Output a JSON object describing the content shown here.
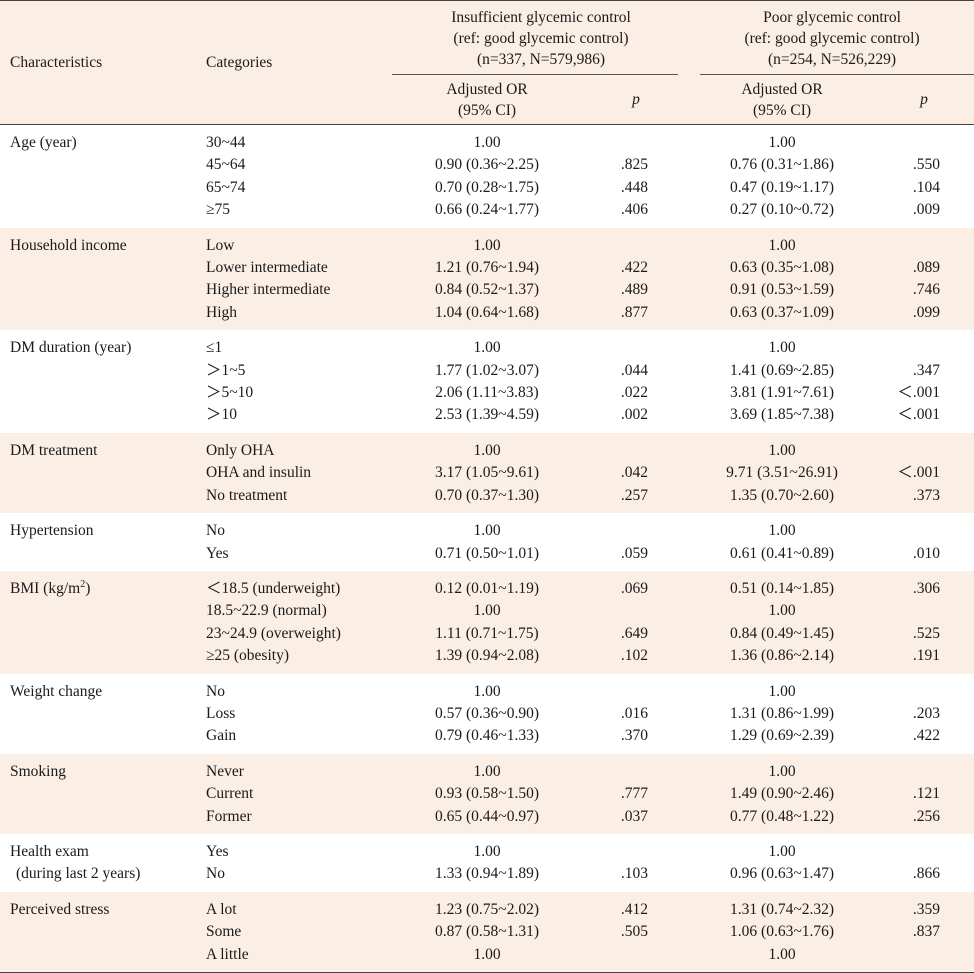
{
  "header": {
    "characteristics": "Characteristics",
    "categories": "Categories",
    "group1": {
      "line1": "Insufficient glycemic control",
      "line2": "(ref: good glycemic control)",
      "line3": "(n=337, N=579,986)"
    },
    "group2": {
      "line1": "Poor glycemic control",
      "line2": "(ref: good glycemic control)",
      "line3": "(n=254, N=526,229)"
    },
    "or_line1": "Adjusted OR",
    "or_line2": "(95% CI)",
    "p": "p"
  },
  "groups": [
    {
      "label": "Age (year)",
      "label2": "",
      "rows": [
        {
          "cat": "30~44",
          "or1": "1.00",
          "p1": "",
          "or2": "1.00",
          "p2": ""
        },
        {
          "cat": "45~64",
          "or1": "0.90 (0.36~2.25)",
          "p1": ".825",
          "or2": "0.76 (0.31~1.86)",
          "p2": ".550"
        },
        {
          "cat": "65~74",
          "or1": "0.70 (0.28~1.75)",
          "p1": ".448",
          "or2": "0.47 (0.19~1.17)",
          "p2": ".104"
        },
        {
          "cat": "≥75",
          "or1": "0.66 (0.24~1.77)",
          "p1": ".406",
          "or2": "0.27 (0.10~0.72)",
          "p2": ".009"
        }
      ]
    },
    {
      "label": "Household income",
      "label2": "",
      "rows": [
        {
          "cat": "Low",
          "or1": "1.00",
          "p1": "",
          "or2": "1.00",
          "p2": ""
        },
        {
          "cat": "Lower intermediate",
          "or1": "1.21 (0.76~1.94)",
          "p1": ".422",
          "or2": "0.63 (0.35~1.08)",
          "p2": ".089"
        },
        {
          "cat": "Higher intermediate",
          "or1": "0.84 (0.52~1.37)",
          "p1": ".489",
          "or2": "0.91 (0.53~1.59)",
          "p2": ".746"
        },
        {
          "cat": "High",
          "or1": "1.04 (0.64~1.68)",
          "p1": ".877",
          "or2": "0.63 (0.37~1.09)",
          "p2": ".099"
        }
      ]
    },
    {
      "label": "DM duration (year)",
      "label2": "",
      "rows": [
        {
          "cat": "≤1",
          "or1": "1.00",
          "p1": "",
          "or2": "1.00",
          "p2": ""
        },
        {
          "cat": "＞1~5",
          "or1": "1.77 (1.02~3.07)",
          "p1": ".044",
          "or2": "1.41 (0.69~2.85)",
          "p2": ".347"
        },
        {
          "cat": "＞5~10",
          "or1": "2.06 (1.11~3.83)",
          "p1": ".022",
          "or2": "3.81 (1.91~7.61)",
          "p2": "＜.001"
        },
        {
          "cat": "＞10",
          "or1": "2.53 (1.39~4.59)",
          "p1": ".002",
          "or2": "3.69 (1.85~7.38)",
          "p2": "＜.001"
        }
      ]
    },
    {
      "label": "DM  treatment",
      "label2": "",
      "rows": [
        {
          "cat": "Only OHA",
          "or1": "1.00",
          "p1": "",
          "or2": "1.00",
          "p2": ""
        },
        {
          "cat": "OHA and insulin",
          "or1": "3.17 (1.05~9.61)",
          "p1": ".042",
          "or2": "9.71 (3.51~26.91)",
          "p2": "＜.001"
        },
        {
          "cat": "No treatment",
          "or1": "0.70 (0.37~1.30)",
          "p1": ".257",
          "or2": "1.35 (0.70~2.60)",
          "p2": ".373"
        }
      ]
    },
    {
      "label": "Hypertension",
      "label2": "",
      "rows": [
        {
          "cat": "No",
          "or1": "1.00",
          "p1": "",
          "or2": "1.00",
          "p2": ""
        },
        {
          "cat": "Yes",
          "or1": "0.71 (0.50~1.01)",
          "p1": ".059",
          "or2": "0.61 (0.41~0.89)",
          "p2": ".010"
        }
      ]
    },
    {
      "label": "BMI (kg/m",
      "label_sup": "2",
      "label_tail": ")",
      "label2": "",
      "rows": [
        {
          "cat": "＜18.5 (underweight)",
          "or1": "0.12 (0.01~1.19)",
          "p1": ".069",
          "or2": "0.51 (0.14~1.85)",
          "p2": ".306"
        },
        {
          "cat": "18.5~22.9 (normal)",
          "or1": "1.00",
          "p1": "",
          "or2": "1.00",
          "p2": ""
        },
        {
          "cat": "23~24.9 (overweight)",
          "or1": "1.11 (0.71~1.75)",
          "p1": ".649",
          "or2": "0.84 (0.49~1.45)",
          "p2": ".525"
        },
        {
          "cat": "≥25 (obesity)",
          "or1": "1.39 (0.94~2.08)",
          "p1": ".102",
          "or2": "1.36 (0.86~2.14)",
          "p2": ".191"
        }
      ]
    },
    {
      "label": "Weight change",
      "label2": "",
      "rows": [
        {
          "cat": "No",
          "or1": "1.00",
          "p1": "",
          "or2": "1.00",
          "p2": ""
        },
        {
          "cat": "Loss",
          "or1": "0.57 (0.36~0.90)",
          "p1": ".016",
          "or2": "1.31 (0.86~1.99)",
          "p2": ".203"
        },
        {
          "cat": "Gain",
          "or1": "0.79 (0.46~1.33)",
          "p1": ".370",
          "or2": "1.29 (0.69~2.39)",
          "p2": ".422"
        }
      ]
    },
    {
      "label": "Smoking",
      "label2": "",
      "rows": [
        {
          "cat": "Never",
          "or1": "1.00",
          "p1": "",
          "or2": "1.00",
          "p2": ""
        },
        {
          "cat": "Current",
          "or1": "0.93 (0.58~1.50)",
          "p1": ".777",
          "or2": "1.49 (0.90~2.46)",
          "p2": ".121"
        },
        {
          "cat": "Former",
          "or1": "0.65 (0.44~0.97)",
          "p1": ".037",
          "or2": "0.77 (0.48~1.22)",
          "p2": ".256"
        }
      ]
    },
    {
      "label": "Health exam",
      "label2": "(during last 2 years)",
      "rows": [
        {
          "cat": "Yes",
          "or1": "1.00",
          "p1": "",
          "or2": "1.00",
          "p2": ""
        },
        {
          "cat": "No",
          "or1": "1.33 (0.94~1.89)",
          "p1": ".103",
          "or2": "0.96 (0.63~1.47)",
          "p2": ".866"
        }
      ]
    },
    {
      "label": "Perceived stress",
      "label2": "",
      "rows": [
        {
          "cat": "A lot",
          "or1": "1.23 (0.75~2.02)",
          "p1": ".412",
          "or2": "1.31 (0.74~2.32)",
          "p2": ".359"
        },
        {
          "cat": "Some",
          "or1": "0.87 (0.58~1.31)",
          "p1": ".505",
          "or2": "1.06 (0.63~1.76)",
          "p2": ".837"
        },
        {
          "cat": "A little",
          "or1": "1.00",
          "p1": "",
          "or2": "1.00",
          "p2": ""
        }
      ]
    }
  ],
  "colors": {
    "shade": "#fbeee4",
    "rule": "#444444"
  }
}
